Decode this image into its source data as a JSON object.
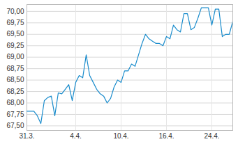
{
  "chart_data": {
    "type": "line",
    "categories": [
      "31.3.",
      null,
      null,
      null,
      null,
      null,
      null,
      null,
      null,
      null,
      null,
      null,
      null,
      null,
      "4.4.",
      null,
      null,
      null,
      null,
      null,
      null,
      null,
      null,
      null,
      null,
      null,
      null,
      "10.4.",
      null,
      null,
      null,
      null,
      null,
      null,
      null,
      null,
      null,
      null,
      null,
      null,
      "16.4.",
      null,
      null,
      null,
      null,
      null,
      null,
      null,
      null,
      null,
      null,
      null,
      null,
      "24.4.",
      null,
      null,
      null,
      null,
      null,
      null
    ],
    "values": [
      67.82,
      67.82,
      67.82,
      67.72,
      67.55,
      68.05,
      68.12,
      68.15,
      67.72,
      68.22,
      68.2,
      68.3,
      68.4,
      68.05,
      68.45,
      68.6,
      68.55,
      69.05,
      68.6,
      68.45,
      68.3,
      68.2,
      68.15,
      68.0,
      68.1,
      68.35,
      68.5,
      68.45,
      68.7,
      68.7,
      68.85,
      68.8,
      69.05,
      69.3,
      69.5,
      69.4,
      69.35,
      69.3,
      69.3,
      69.25,
      69.45,
      69.4,
      69.7,
      69.6,
      69.55,
      69.95,
      69.95,
      69.6,
      69.65,
      69.85,
      70.08,
      70.08,
      70.08,
      69.7,
      70.05,
      70.05,
      69.45,
      69.5,
      69.5,
      69.78
    ],
    "color": "#1a8ccc",
    "ylim": [
      67.4,
      70.15
    ],
    "yticks": [
      {
        "value": 67.5,
        "label": "67,50"
      },
      {
        "value": 67.75,
        "label": "67,75"
      },
      {
        "value": 68.0,
        "label": "68,00"
      },
      {
        "value": 68.25,
        "label": "68,25"
      },
      {
        "value": 68.5,
        "label": "68,50"
      },
      {
        "value": 68.75,
        "label": "68,75"
      },
      {
        "value": 69.0,
        "label": "69,00"
      },
      {
        "value": 69.25,
        "label": "69,25"
      },
      {
        "value": 69.5,
        "label": "69,50"
      },
      {
        "value": 69.75,
        "label": "69,75"
      },
      {
        "value": 70.0,
        "label": "70,00"
      }
    ],
    "grid": true
  }
}
